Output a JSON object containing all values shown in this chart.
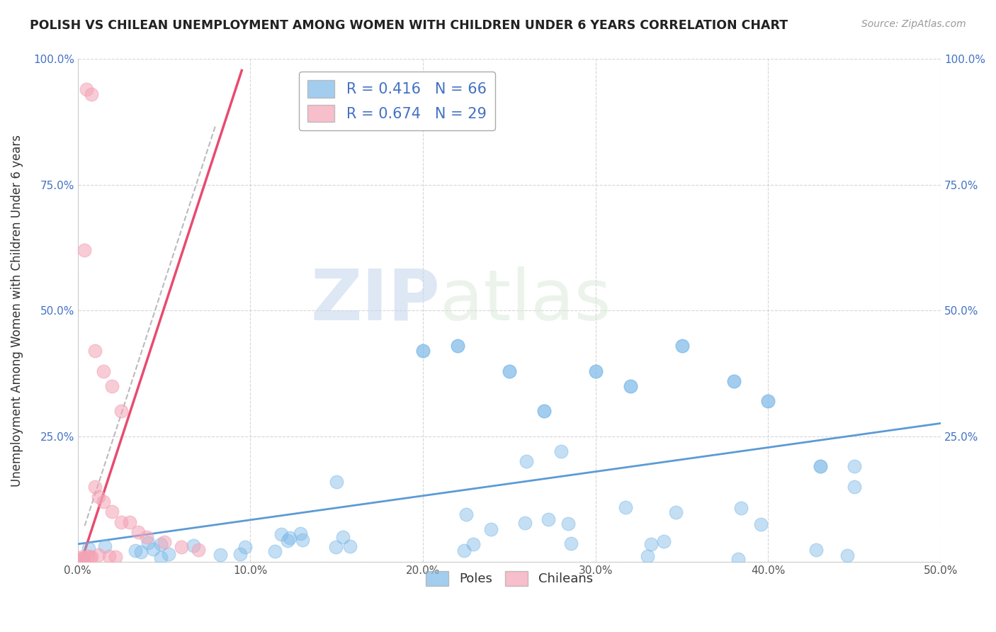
{
  "title": "POLISH VS CHILEAN UNEMPLOYMENT AMONG WOMEN WITH CHILDREN UNDER 6 YEARS CORRELATION CHART",
  "source": "Source: ZipAtlas.com",
  "ylabel": "Unemployment Among Women with Children Under 6 years",
  "xlim": [
    0.0,
    0.5
  ],
  "ylim": [
    0.0,
    1.0
  ],
  "poles_R": 0.416,
  "poles_N": 66,
  "chileans_R": 0.674,
  "chileans_N": 29,
  "poles_color": "#7cb9e8",
  "chileans_color": "#f4a3b5",
  "poles_line_color": "#5b9bd5",
  "chileans_line_color": "#e84b6e",
  "chileans_dash_color": "#bbbbbb",
  "watermark_zip": "ZIP",
  "watermark_atlas": "atlas",
  "background_color": "#ffffff",
  "legend_text_color": "#4472c4"
}
